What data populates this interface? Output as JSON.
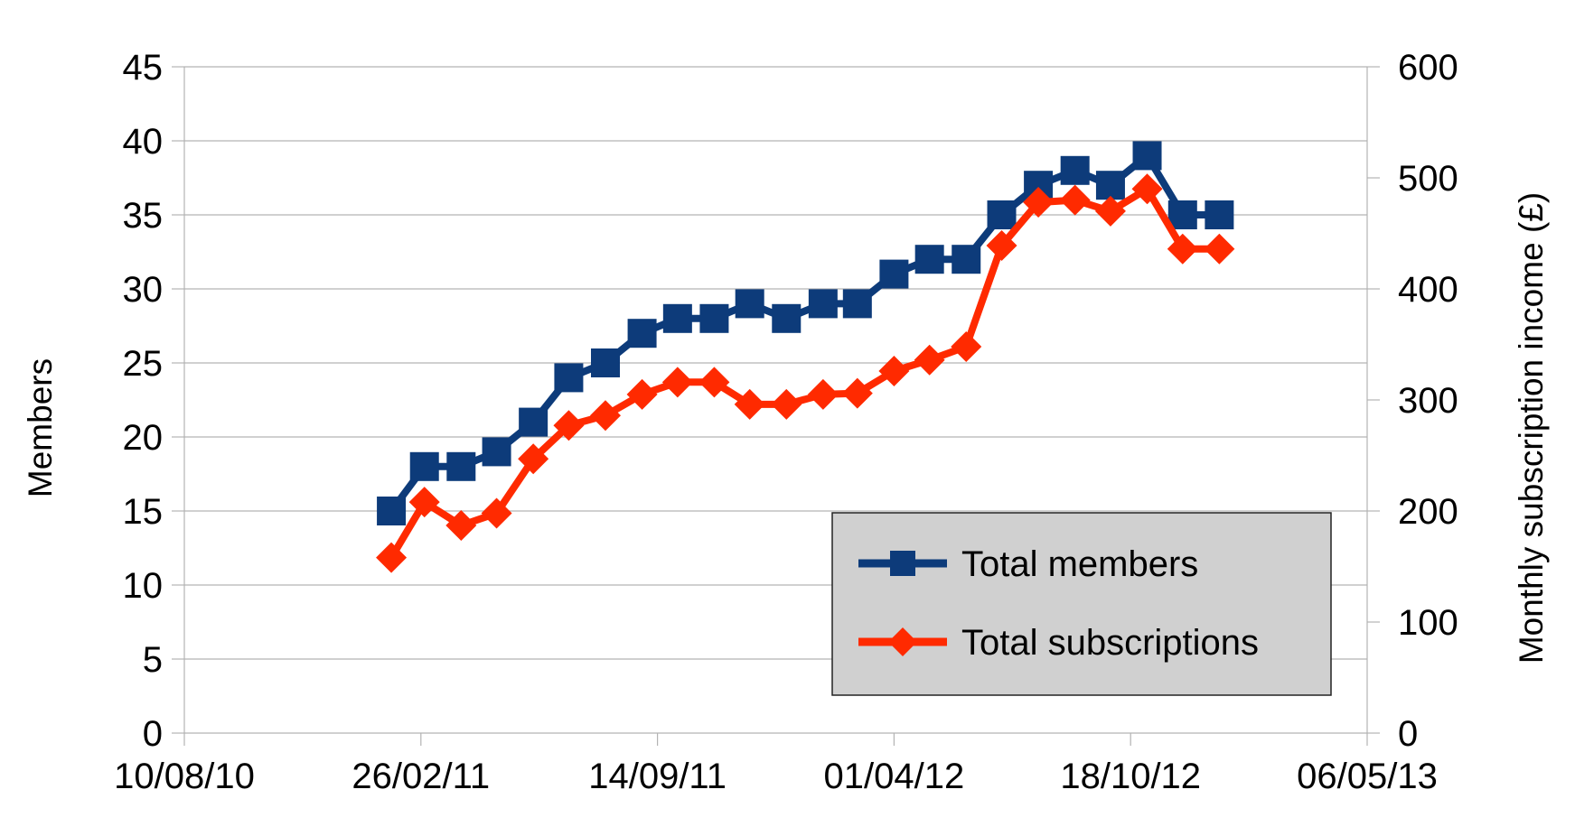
{
  "chart_data": {
    "type": "line",
    "ylabel": "Members",
    "y2label": "Monthly subscription income (£)",
    "xlim": [
      "10/08/10",
      "06/05/13"
    ],
    "ylim": [
      0,
      45
    ],
    "y2lim": [
      0,
      600
    ],
    "x_ticks": [
      "10/08/10",
      "26/02/11",
      "14/09/11",
      "01/04/12",
      "18/10/12",
      "06/05/13"
    ],
    "y_ticks": [
      "0",
      "5",
      "10",
      "15",
      "20",
      "25",
      "30",
      "35",
      "40",
      "45"
    ],
    "y2_ticks": [
      "0",
      "100",
      "200",
      "300",
      "400",
      "500",
      "600"
    ],
    "grid": true,
    "legend_position": "bottom-right",
    "series": [
      {
        "name": "Total members",
        "axis": "left",
        "color": "#0d3b7a",
        "marker": "square",
        "x": [
          "2011-02-01",
          "2011-03-01",
          "2011-04-01",
          "2011-05-01",
          "2011-06-01",
          "2011-07-01",
          "2011-08-01",
          "2011-09-01",
          "2011-10-01",
          "2011-11-01",
          "2011-12-01",
          "2012-01-01",
          "2012-02-01",
          "2012-03-01",
          "2012-04-01",
          "2012-05-01",
          "2012-06-01",
          "2012-07-01",
          "2012-08-01",
          "2012-09-01",
          "2012-10-01",
          "2012-11-01",
          "2012-12-01",
          "2013-01-01"
        ],
        "values": [
          15,
          18,
          18,
          19,
          21,
          24,
          25,
          27,
          28,
          28,
          29,
          28,
          29,
          29,
          31,
          32,
          32,
          35,
          37,
          38,
          37,
          39,
          35,
          35
        ]
      },
      {
        "name": "Total subscriptions",
        "axis": "right",
        "color": "#ff2a00",
        "marker": "diamond",
        "x": [
          "2011-02-01",
          "2011-03-01",
          "2011-04-01",
          "2011-05-01",
          "2011-06-01",
          "2011-07-01",
          "2011-08-01",
          "2011-09-01",
          "2011-10-01",
          "2011-11-01",
          "2011-12-01",
          "2012-01-01",
          "2012-02-01",
          "2012-03-01",
          "2012-04-01",
          "2012-05-01",
          "2012-06-01",
          "2012-07-01",
          "2012-08-01",
          "2012-09-01",
          "2012-10-01",
          "2012-11-01",
          "2012-12-01",
          "2013-01-01"
        ],
        "values": [
          158,
          208,
          187,
          198,
          247,
          277,
          286,
          305,
          316,
          316,
          296,
          296,
          305,
          306,
          326,
          336,
          348,
          439,
          478,
          480,
          470,
          490,
          436,
          436
        ]
      }
    ]
  }
}
